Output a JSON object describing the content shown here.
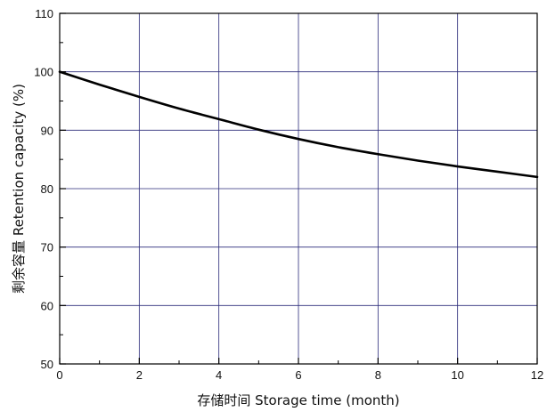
{
  "chart_data": {
    "type": "line",
    "title": "",
    "xlabel": "存储时间 Storage time (month)",
    "ylabel": "剩余容量 Retention capacity (%)",
    "xlim": [
      0,
      12
    ],
    "ylim": [
      50,
      110
    ],
    "x_ticks": [
      0,
      2,
      4,
      6,
      8,
      10,
      12
    ],
    "y_ticks": [
      50,
      60,
      70,
      80,
      90,
      100,
      110
    ],
    "x_tick_labels": [
      "0",
      "2",
      "4",
      "6",
      "8",
      "10",
      "12"
    ],
    "y_tick_labels": [
      "50",
      "60",
      "70",
      "80",
      "90",
      "100",
      "110"
    ],
    "grid": true,
    "legend": "none",
    "colors": {
      "line": "#000000",
      "grid": "#2b2b7a",
      "axis": "#000000"
    },
    "series": [
      {
        "x": [
          0,
          1,
          2,
          3,
          4,
          5,
          6,
          7,
          8,
          9,
          10,
          11,
          12
        ],
        "values": [
          100,
          97.8,
          95.7,
          93.7,
          91.9,
          90.1,
          88.5,
          87.1,
          85.9,
          84.8,
          83.8,
          82.9,
          82.0
        ]
      }
    ]
  }
}
